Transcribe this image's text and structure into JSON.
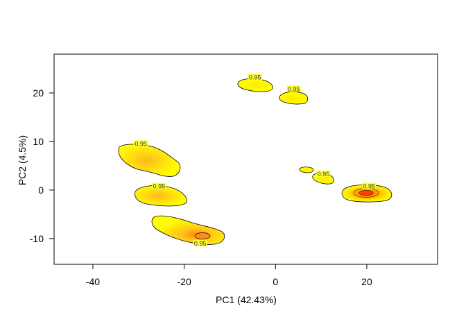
{
  "chart_data": {
    "type": "scatter",
    "subtype": "density-contour",
    "title": "",
    "xlabel": "PC1 (42.43%)",
    "ylabel": "PC2 (4.5%)",
    "xlim": [
      -48.5,
      35.5
    ],
    "ylim": [
      -15.3,
      28.0
    ],
    "xticks": [
      -40,
      -20,
      0,
      20
    ],
    "yticks": [
      -10,
      0,
      10,
      20
    ],
    "grid": false,
    "legend": "none",
    "contour_level_label": "0.95",
    "colors": {
      "outline": "#000000",
      "low": "#ffff00",
      "mid": "#ffd21e",
      "high": "#ff8c00",
      "peak": "#ff4500",
      "label": "#333333"
    },
    "clusters": [
      {
        "x": -28,
        "y": 7.5,
        "label": "0.95",
        "label_x": -29.5,
        "label_y": 9.5,
        "peak": "mid"
      },
      {
        "x": -25,
        "y": -0.8,
        "label": "0.95",
        "label_x": -25.5,
        "label_y": 0.8,
        "peak": "mid"
      },
      {
        "x": -20,
        "y": -7.5,
        "label": "0.95",
        "label_x": -16.5,
        "label_y": -11.0,
        "peak": "high"
      },
      {
        "x": -5,
        "y": 22.5,
        "label": "0.95",
        "label_x": -4.5,
        "label_y": 23.2,
        "peak": "low"
      },
      {
        "x": 4,
        "y": 20.0,
        "label": "0.95",
        "label_x": 4.0,
        "label_y": 20.8,
        "peak": "low"
      },
      {
        "x": 6.5,
        "y": 4.5,
        "label": "",
        "label_x": 0,
        "label_y": 0,
        "peak": "low"
      },
      {
        "x": 10.5,
        "y": 2.8,
        "label": "0.95",
        "label_x": 10.5,
        "label_y": 3.3,
        "peak": "low"
      },
      {
        "x": 20,
        "y": -0.2,
        "label": "0.95",
        "label_x": 20.5,
        "label_y": 0.8,
        "peak": "peak"
      }
    ]
  }
}
